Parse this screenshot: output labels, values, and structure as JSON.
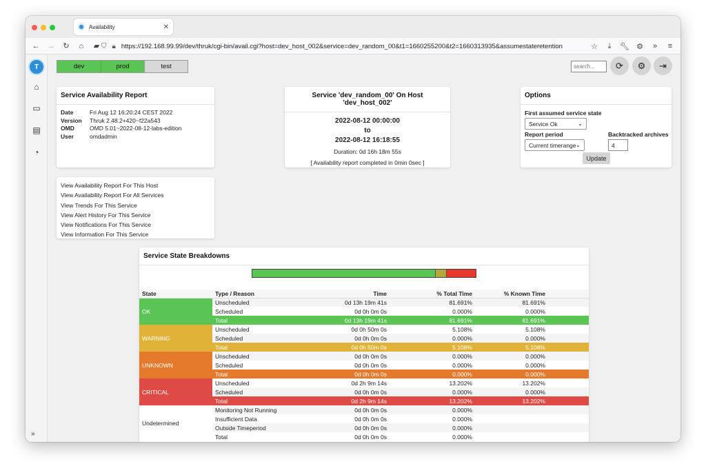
{
  "browser": {
    "tab_title": "Availability",
    "url": "https://192.168.99.99/dev/thruk/cgi-bin/avail.cgi?host=dev_host_002&service=dev_random_00&t1=1660255200&t2=1660313935&assumestateretention"
  },
  "env_tabs": [
    "dev",
    "prod",
    "test"
  ],
  "search": {
    "placeholder": "search..."
  },
  "report_panel": {
    "title": "Service Availability Report",
    "rows": [
      {
        "key": "Date",
        "value": "Fri Aug 12 16:20:24 CEST 2022"
      },
      {
        "key": "Version",
        "value": "Thruk 2.48.2+420~f22a543"
      },
      {
        "key": "OMD",
        "value": "OMD 5.01~2022-08-12-labs-edition"
      },
      {
        "key": "User",
        "value": "omdadmin"
      }
    ]
  },
  "service_panel": {
    "title": "Service 'dev_random_00' On Host 'dev_host_002'",
    "start": "2022-08-12 00:00:00",
    "to": "to",
    "end": "2022-08-12 16:18:55",
    "duration": "Duration: 0d 16h 18m 55s",
    "completed": "[ Availability report completed in 0min 0sec ]"
  },
  "options_panel": {
    "title": "Options",
    "first_state_label": "First assumed service state",
    "first_state_value": "Service Ok",
    "period_label": "Report period",
    "period_value": "Current timerange",
    "backtracked_label": "Backtracked archives",
    "backtracked_value": "4",
    "update_label": "Update"
  },
  "links": [
    "View Availability Report For This Host",
    "View Availability Report For All Services",
    "View Trends For This Service",
    "View Alert History For This Service",
    "View Notifications For This Service",
    "View Information For This Service"
  ],
  "breakdown": {
    "title": "Service State Breakdowns",
    "bar": [
      {
        "state": "ok",
        "percent": 81.691,
        "color": "#5ac454"
      },
      {
        "state": "warning",
        "percent": 5.108,
        "color": "#b5a83a"
      },
      {
        "state": "critical",
        "percent": 13.202,
        "color": "#e8382d"
      }
    ],
    "headers": [
      "State",
      "Type / Reason",
      "Time",
      "% Total Time",
      "% Known Time"
    ],
    "groups": [
      {
        "state": "OK",
        "cls": "ok",
        "rows": [
          [
            "Unscheduled",
            "0d 13h 19m 41s",
            "81.691%",
            "81.691%"
          ],
          [
            "Scheduled",
            "0d 0h 0m 0s",
            "0.000%",
            "0.000%"
          ],
          [
            "Total",
            "0d 13h 19m 41s",
            "81.691%",
            "81.691%"
          ]
        ]
      },
      {
        "state": "WARNING",
        "cls": "warning",
        "rows": [
          [
            "Unscheduled",
            "0d 0h 50m 0s",
            "5.108%",
            "5.108%"
          ],
          [
            "Scheduled",
            "0d 0h 0m 0s",
            "0.000%",
            "0.000%"
          ],
          [
            "Total",
            "0d 0h 50m 0s",
            "5.108%",
            "5.108%"
          ]
        ]
      },
      {
        "state": "UNKNOWN",
        "cls": "unknown",
        "rows": [
          [
            "Unscheduled",
            "0d 0h 0m 0s",
            "0.000%",
            "0.000%"
          ],
          [
            "Scheduled",
            "0d 0h 0m 0s",
            "0.000%",
            "0.000%"
          ],
          [
            "Total",
            "0d 0h 0m 0s",
            "0.000%",
            "0.000%"
          ]
        ]
      },
      {
        "state": "CRITICAL",
        "cls": "critical",
        "rows": [
          [
            "Unscheduled",
            "0d 2h 9m 14s",
            "13.202%",
            "13.202%"
          ],
          [
            "Scheduled",
            "0d 0h 0m 0s",
            "0.000%",
            "0.000%"
          ],
          [
            "Total",
            "0d 2h 9m 14s",
            "13.202%",
            "13.202%"
          ]
        ]
      },
      {
        "state": "Undetermined",
        "cls": "undet",
        "rows": [
          [
            "Monitoring Not Running",
            "0d 0h 0m 0s",
            "0.000%",
            ""
          ],
          [
            "Insufficient Data",
            "0d 0h 0m 0s",
            "0.000%",
            ""
          ],
          [
            "Outside Timeperiod",
            "0d 0h 0m 0s",
            "0.000%",
            ""
          ],
          [
            "Total",
            "0d 0h 0m 0s",
            "0.000%",
            ""
          ]
        ]
      }
    ]
  }
}
